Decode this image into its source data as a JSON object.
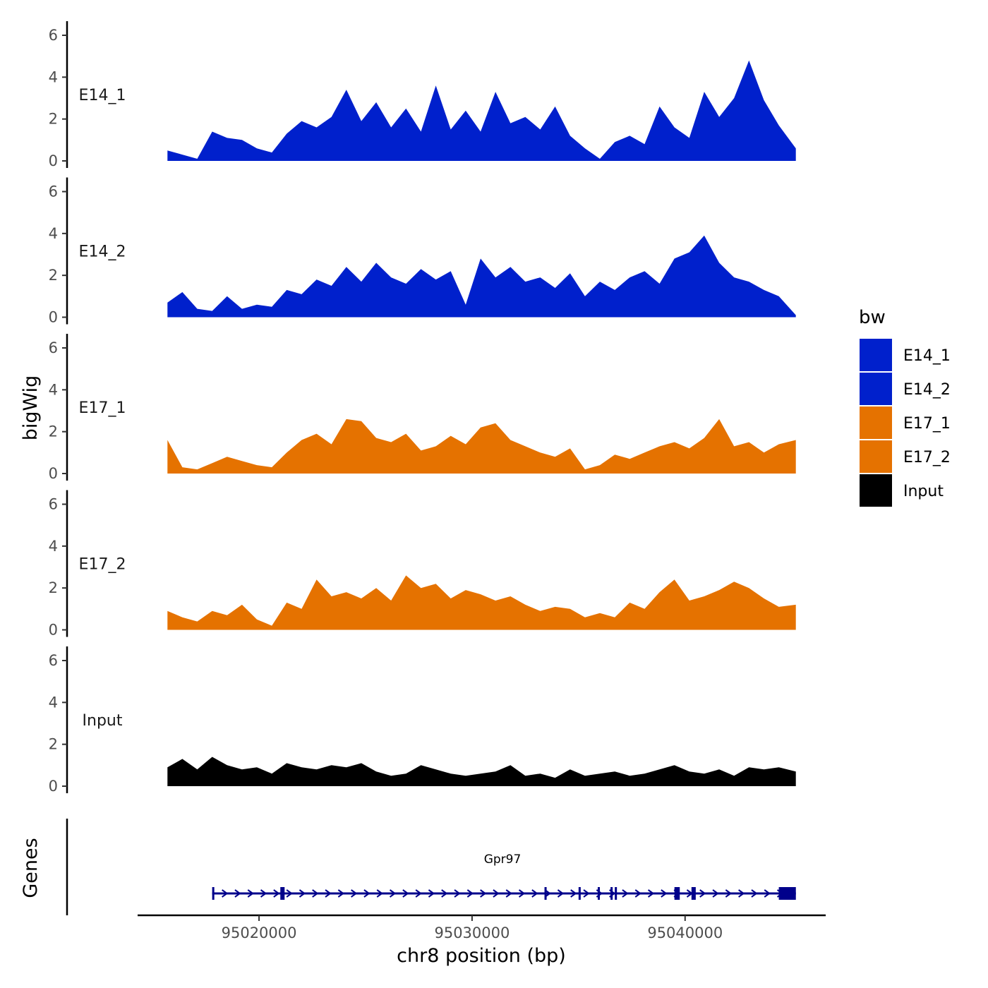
{
  "chart_data": {
    "type": "area",
    "x_axis": {
      "label": "chr8 position (bp)",
      "ticks": [
        95020000,
        95030000,
        95040000
      ],
      "tick_labels": [
        "95020000",
        "95030000",
        "95040000"
      ],
      "range": [
        95014300,
        95046600
      ],
      "data_range": [
        95015700,
        95045200
      ]
    },
    "y_axis": {
      "label": "bigWig",
      "ticks": [
        0,
        2,
        4,
        6
      ],
      "tick_labels": [
        "0",
        "2",
        "4",
        "6"
      ],
      "range": [
        0,
        6.5
      ]
    },
    "legend": {
      "title": "bw",
      "position": "right",
      "entries": [
        {
          "label": "E14_1",
          "color": "#0020CC"
        },
        {
          "label": "E14_2",
          "color": "#0020CC"
        },
        {
          "label": "E17_1",
          "color": "#E57200"
        },
        {
          "label": "E17_2",
          "color": "#E57200"
        },
        {
          "label": "Input",
          "color": "#000000"
        }
      ]
    },
    "series": [
      {
        "name": "E14_1",
        "label": "E14_1",
        "color": "#0020CC",
        "x": [
          95015700,
          95016400,
          95017100,
          95017800,
          95018500,
          95019200,
          95019900,
          95020600,
          95021300,
          95022000,
          95022700,
          95023400,
          95024100,
          95024800,
          95025500,
          95026200,
          95026900,
          95027600,
          95028300,
          95029000,
          95029700,
          95030400,
          95031100,
          95031800,
          95032500,
          95033200,
          95033900,
          95034600,
          95035300,
          95036000,
          95036700,
          95037400,
          95038100,
          95038800,
          95039500,
          95040200,
          95040900,
          95041600,
          95042300,
          95043000,
          95043700,
          95044400,
          95045200
        ],
        "values": [
          0.5,
          0.3,
          0.1,
          1.4,
          1.1,
          1.0,
          0.6,
          0.4,
          1.3,
          1.9,
          1.6,
          2.1,
          3.4,
          1.9,
          2.8,
          1.6,
          2.5,
          1.4,
          3.6,
          1.5,
          2.4,
          1.4,
          3.3,
          1.8,
          2.1,
          1.5,
          2.6,
          1.2,
          0.6,
          0.1,
          0.9,
          1.2,
          0.8,
          2.6,
          1.6,
          1.1,
          3.3,
          2.1,
          3.0,
          4.8,
          2.9,
          1.7,
          0.6
        ]
      },
      {
        "name": "E14_2",
        "label": "E14_2",
        "color": "#0020CC",
        "x": [
          95015700,
          95016400,
          95017100,
          95017800,
          95018500,
          95019200,
          95019900,
          95020600,
          95021300,
          95022000,
          95022700,
          95023400,
          95024100,
          95024800,
          95025500,
          95026200,
          95026900,
          95027600,
          95028300,
          95029000,
          95029700,
          95030400,
          95031100,
          95031800,
          95032500,
          95033200,
          95033900,
          95034600,
          95035300,
          95036000,
          95036700,
          95037400,
          95038100,
          95038800,
          95039500,
          95040200,
          95040900,
          95041600,
          95042300,
          95043000,
          95043700,
          95044400,
          95045200
        ],
        "values": [
          0.7,
          1.2,
          0.4,
          0.3,
          1.0,
          0.4,
          0.6,
          0.5,
          1.3,
          1.1,
          1.8,
          1.5,
          2.4,
          1.7,
          2.6,
          1.9,
          1.6,
          2.3,
          1.8,
          2.2,
          0.6,
          2.8,
          1.9,
          2.4,
          1.7,
          1.9,
          1.4,
          2.1,
          1.0,
          1.7,
          1.3,
          1.9,
          2.2,
          1.6,
          2.8,
          3.1,
          3.9,
          2.6,
          1.9,
          1.7,
          1.3,
          1.0,
          0.1
        ]
      },
      {
        "name": "E17_1",
        "label": "E17_1",
        "color": "#E57200",
        "x": [
          95015700,
          95016400,
          95017100,
          95017800,
          95018500,
          95019200,
          95019900,
          95020600,
          95021300,
          95022000,
          95022700,
          95023400,
          95024100,
          95024800,
          95025500,
          95026200,
          95026900,
          95027600,
          95028300,
          95029000,
          95029700,
          95030400,
          95031100,
          95031800,
          95032500,
          95033200,
          95033900,
          95034600,
          95035300,
          95036000,
          95036700,
          95037400,
          95038100,
          95038800,
          95039500,
          95040200,
          95040900,
          95041600,
          95042300,
          95043000,
          95043700,
          95044400,
          95045200
        ],
        "values": [
          1.6,
          0.3,
          0.2,
          0.5,
          0.8,
          0.6,
          0.4,
          0.3,
          1.0,
          1.6,
          1.9,
          1.4,
          2.6,
          2.5,
          1.7,
          1.5,
          1.9,
          1.1,
          1.3,
          1.8,
          1.4,
          2.2,
          2.4,
          1.6,
          1.3,
          1.0,
          0.8,
          1.2,
          0.2,
          0.4,
          0.9,
          0.7,
          1.0,
          1.3,
          1.5,
          1.2,
          1.7,
          2.6,
          1.3,
          1.5,
          1.0,
          1.4,
          1.6
        ]
      },
      {
        "name": "E17_2",
        "label": "E17_2",
        "color": "#E57200",
        "x": [
          95015700,
          95016400,
          95017100,
          95017800,
          95018500,
          95019200,
          95019900,
          95020600,
          95021300,
          95022000,
          95022700,
          95023400,
          95024100,
          95024800,
          95025500,
          95026200,
          95026900,
          95027600,
          95028300,
          95029000,
          95029700,
          95030400,
          95031100,
          95031800,
          95032500,
          95033200,
          95033900,
          95034600,
          95035300,
          95036000,
          95036700,
          95037400,
          95038100,
          95038800,
          95039500,
          95040200,
          95040900,
          95041600,
          95042300,
          95043000,
          95043700,
          95044400,
          95045200
        ],
        "values": [
          0.9,
          0.6,
          0.4,
          0.9,
          0.7,
          1.2,
          0.5,
          0.2,
          1.3,
          1.0,
          2.4,
          1.6,
          1.8,
          1.5,
          2.0,
          1.4,
          2.6,
          2.0,
          2.2,
          1.5,
          1.9,
          1.7,
          1.4,
          1.6,
          1.2,
          0.9,
          1.1,
          1.0,
          0.6,
          0.8,
          0.6,
          1.3,
          1.0,
          1.8,
          2.4,
          1.4,
          1.6,
          1.9,
          2.3,
          2.0,
          1.5,
          1.1,
          1.2
        ]
      },
      {
        "name": "Input",
        "label": "Input",
        "color": "#000000",
        "x": [
          95015700,
          95016400,
          95017100,
          95017800,
          95018500,
          95019200,
          95019900,
          95020600,
          95021300,
          95022000,
          95022700,
          95023400,
          95024100,
          95024800,
          95025500,
          95026200,
          95026900,
          95027600,
          95028300,
          95029000,
          95029700,
          95030400,
          95031100,
          95031800,
          95032500,
          95033200,
          95033900,
          95034600,
          95035300,
          95036000,
          95036700,
          95037400,
          95038100,
          95038800,
          95039500,
          95040200,
          95040900,
          95041600,
          95042300,
          95043000,
          95043700,
          95044400,
          95045200
        ],
        "values": [
          0.9,
          1.3,
          0.8,
          1.4,
          1.0,
          0.8,
          0.9,
          0.6,
          1.1,
          0.9,
          0.8,
          1.0,
          0.9,
          1.1,
          0.7,
          0.5,
          0.6,
          1.0,
          0.8,
          0.6,
          0.5,
          0.6,
          0.7,
          1.0,
          0.5,
          0.6,
          0.4,
          0.8,
          0.5,
          0.6,
          0.7,
          0.5,
          0.6,
          0.8,
          1.0,
          0.7,
          0.6,
          0.8,
          0.5,
          0.9,
          0.8,
          0.9,
          0.7
        ]
      }
    ],
    "genes": {
      "track_label": "Genes",
      "name": "Gpr97",
      "color": "#00008B",
      "strand": "+",
      "start": 95017800,
      "end": 95045200,
      "exons": [
        [
          95017800,
          95017900
        ],
        [
          95021000,
          95021200
        ],
        [
          95033400,
          95033500
        ],
        [
          95035000,
          95035100
        ],
        [
          95035900,
          95036000
        ],
        [
          95036500,
          95036600
        ],
        [
          95036700,
          95036800
        ],
        [
          95039500,
          95039750
        ],
        [
          95040300,
          95040500
        ],
        [
          95044400,
          95045200
        ]
      ]
    }
  }
}
